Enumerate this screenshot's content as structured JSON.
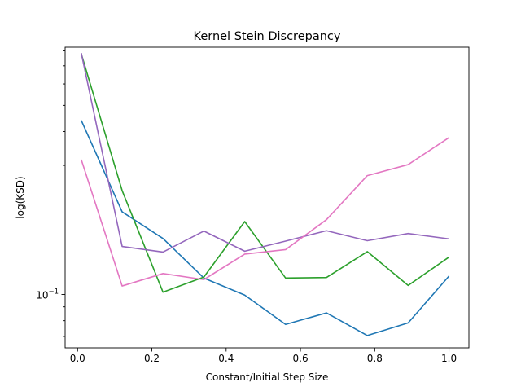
{
  "chart_data": {
    "type": "line",
    "title": "Kernel Stein Discrepancy",
    "xlabel": "Constant/Initial Step Size",
    "ylabel": "log(KSD)",
    "yscale": "log",
    "xlim": [
      -0.0335,
      1.0535
    ],
    "ylim": [
      0.0635,
      0.82
    ],
    "x": [
      0.01,
      0.12,
      0.23,
      0.34,
      0.45,
      0.56,
      0.67,
      0.78,
      0.89,
      1.0
    ],
    "xticks": [
      {
        "value": 0.0,
        "label": "0.0"
      },
      {
        "value": 0.2,
        "label": "0.2"
      },
      {
        "value": 0.4,
        "label": "0.4"
      },
      {
        "value": 0.6,
        "label": "0.6"
      },
      {
        "value": 0.8,
        "label": "0.8"
      },
      {
        "value": 1.0,
        "label": "1.0"
      }
    ],
    "yticks_major": [
      {
        "value": 0.1,
        "base": "10",
        "exp": "−1"
      }
    ],
    "yticks_minor": [
      0.07,
      0.08,
      0.09,
      0.2,
      0.3,
      0.4,
      0.5,
      0.6,
      0.7,
      0.8
    ],
    "grid": false,
    "series": [
      {
        "color": "#1f77b4",
        "values": [
          0.44,
          0.202,
          0.161,
          0.115,
          0.0995,
          0.0775,
          0.0855,
          0.0705,
          0.0785,
          0.117
        ]
      },
      {
        "color": "#2ca02c",
        "values": [
          0.775,
          0.242,
          0.102,
          0.116,
          0.186,
          0.115,
          0.1155,
          0.144,
          0.108,
          0.1375
        ]
      },
      {
        "color": "#9467bd",
        "values": [
          0.78,
          0.1505,
          0.1435,
          0.1715,
          0.1445,
          0.1575,
          0.172,
          0.158,
          0.168,
          0.1605
        ]
      },
      {
        "color": "#e377c2",
        "values": [
          0.315,
          0.1075,
          0.1195,
          0.1135,
          0.141,
          0.1465,
          0.189,
          0.275,
          0.302,
          0.38
        ]
      }
    ]
  }
}
